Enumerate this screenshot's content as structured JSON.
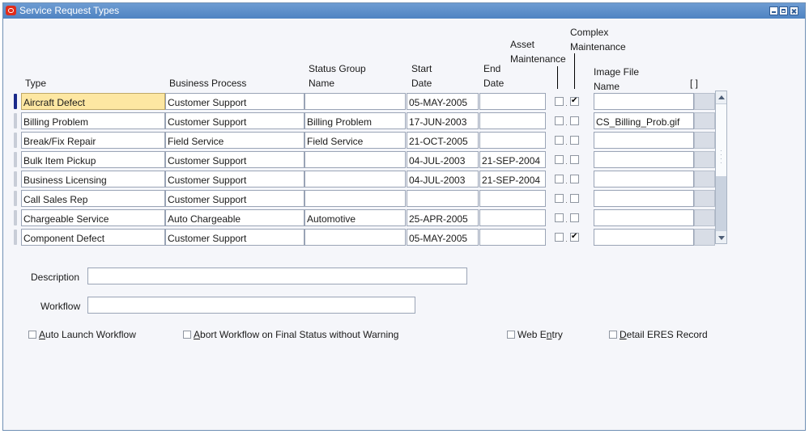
{
  "window": {
    "title": "Service Request Types"
  },
  "columns": {
    "type": "Type",
    "business_process": "Business Process",
    "status_group_line1": "Status Group",
    "status_group_line2": "Name",
    "start_line1": "Start",
    "start_line2": "Date",
    "end_line1": "End",
    "end_line2": "Date",
    "asset_line1": "Asset",
    "asset_line2": "Maintenance",
    "complex_line1": "Complex",
    "complex_line2": "Maintenance",
    "image_line1": "Image File",
    "image_line2": "Name",
    "folder": "[ ]"
  },
  "rows": [
    {
      "type": "Aircraft Defect",
      "process": "Customer Support",
      "status_group": "",
      "start": "05-MAY-2005",
      "end": "",
      "asset": false,
      "complex": true,
      "image": ""
    },
    {
      "type": "Billing Problem",
      "process": "Customer Support",
      "status_group": "Billing Problem",
      "start": "17-JUN-2003",
      "end": "",
      "asset": false,
      "complex": false,
      "image": "CS_Billing_Prob.gif"
    },
    {
      "type": "Break/Fix Repair",
      "process": "Field Service",
      "status_group": "Field Service",
      "start": "21-OCT-2005",
      "end": "",
      "asset": false,
      "complex": false,
      "image": ""
    },
    {
      "type": "Bulk Item Pickup",
      "process": "Customer Support",
      "status_group": "",
      "start": "04-JUL-2003",
      "end": "21-SEP-2004",
      "asset": false,
      "complex": false,
      "image": ""
    },
    {
      "type": "Business Licensing",
      "process": "Customer Support",
      "status_group": "",
      "start": "04-JUL-2003",
      "end": "21-SEP-2004",
      "asset": false,
      "complex": false,
      "image": ""
    },
    {
      "type": "Call Sales Rep",
      "process": "Customer Support",
      "status_group": "",
      "start": "",
      "end": "",
      "asset": false,
      "complex": false,
      "image": ""
    },
    {
      "type": "Chargeable Service",
      "process": "Auto Chargeable",
      "status_group": "Automotive",
      "start": "25-APR-2005",
      "end": "",
      "asset": false,
      "complex": false,
      "image": ""
    },
    {
      "type": "Component Defect",
      "process": "Customer Support",
      "status_group": "",
      "start": "05-MAY-2005",
      "end": "",
      "asset": false,
      "complex": true,
      "image": ""
    }
  ],
  "form": {
    "description_label": "Description",
    "description_value": "",
    "workflow_label": "Workflow",
    "workflow_value": ""
  },
  "options": {
    "auto_launch_pre": "",
    "auto_launch_u": "A",
    "auto_launch_post": "uto Launch Workflow",
    "abort_pre": "",
    "abort_u": "A",
    "abort_post": "bort Workflow on Final Status without Warning",
    "web_pre": "Web E",
    "web_u": "n",
    "web_post": "try",
    "detail_pre": "",
    "detail_u": "D",
    "detail_post": "etail ERES Record"
  }
}
